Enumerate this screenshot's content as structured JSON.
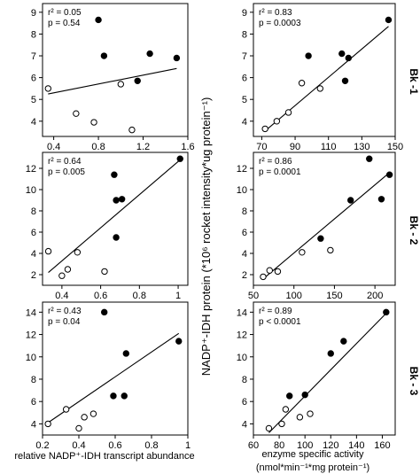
{
  "figure": {
    "y_axis_label": "NADP⁺-IDH protein (*10⁶ rocket intensity*ug protein⁻¹)",
    "x_axis_label_left": "relative NADP⁺-IDH transcript abundance",
    "x_axis_label_right_line1": "enzyme specific activity",
    "x_axis_label_right_line2": "(nmol*min⁻¹*mg protein⁻¹)",
    "row_labels": [
      "Bk -1",
      "Bk - 2",
      "Bk - 3"
    ]
  },
  "chart_data": [
    {
      "type": "scatter",
      "panel": "left-row1",
      "xlim": [
        0.3,
        1.6
      ],
      "ylim": [
        3.3,
        9.4
      ],
      "xticks": [
        0.4,
        0.8,
        1.2,
        1.6
      ],
      "yticks": [
        4,
        5,
        6,
        7,
        8,
        9
      ],
      "annotation": [
        "r² = 0.05",
        "p = 0.54"
      ],
      "series": [
        {
          "marker": "open",
          "points": [
            [
              0.35,
              5.5
            ],
            [
              0.6,
              4.35
            ],
            [
              0.76,
              3.95
            ],
            [
              1.0,
              5.7
            ],
            [
              1.1,
              3.6
            ]
          ]
        },
        {
          "marker": "filled",
          "points": [
            [
              0.8,
              8.65
            ],
            [
              0.85,
              7.0
            ],
            [
              1.15,
              5.85
            ],
            [
              1.26,
              7.1
            ],
            [
              1.5,
              6.9
            ]
          ]
        }
      ],
      "fit": [
        [
          0.35,
          5.25
        ],
        [
          1.5,
          6.42
        ]
      ]
    },
    {
      "type": "scatter",
      "panel": "right-row1",
      "xlim": [
        65,
        150
      ],
      "ylim": [
        3.3,
        9.4
      ],
      "xticks": [
        70,
        90,
        110,
        130,
        150
      ],
      "yticks": [
        4,
        5,
        6,
        7,
        8,
        9
      ],
      "annotation": [
        "r² = 0.83",
        "p = 0.0003"
      ],
      "series": [
        {
          "marker": "open",
          "points": [
            [
              72,
              3.65
            ],
            [
              79,
              4.0
            ],
            [
              86,
              4.4
            ],
            [
              94,
              5.75
            ],
            [
              105,
              5.5
            ]
          ]
        },
        {
          "marker": "filled",
          "points": [
            [
              98,
              7.0
            ],
            [
              118,
              7.1
            ],
            [
              120,
              5.85
            ],
            [
              122,
              6.9
            ],
            [
              146,
              8.65
            ]
          ]
        }
      ],
      "fit": [
        [
          72,
          3.55
        ],
        [
          146,
          8.35
        ]
      ]
    },
    {
      "type": "scatter",
      "panel": "left-row2",
      "xlim": [
        0.3,
        1.05
      ],
      "ylim": [
        1.0,
        13.5
      ],
      "xticks": [
        0.4,
        0.6,
        0.8,
        1.0
      ],
      "yticks": [
        2,
        4,
        6,
        8,
        10,
        12
      ],
      "annotation": [
        "r² = 0.64",
        "p = 0.005"
      ],
      "series": [
        {
          "marker": "open",
          "points": [
            [
              0.33,
              4.2
            ],
            [
              0.4,
              1.9
            ],
            [
              0.43,
              2.5
            ],
            [
              0.48,
              4.1
            ],
            [
              0.62,
              2.3
            ]
          ]
        },
        {
          "marker": "filled",
          "points": [
            [
              0.67,
              11.4
            ],
            [
              0.68,
              9.0
            ],
            [
              0.68,
              5.5
            ],
            [
              0.71,
              9.1
            ],
            [
              1.01,
              12.9
            ]
          ]
        }
      ],
      "fit": [
        [
          0.33,
          2.2
        ],
        [
          1.01,
          12.8
        ]
      ]
    },
    {
      "type": "scatter",
      "panel": "right-row2",
      "xlim": [
        50,
        225
      ],
      "ylim": [
        1.0,
        13.5
      ],
      "xticks": [
        50,
        100,
        150,
        200
      ],
      "yticks": [
        2,
        4,
        6,
        8,
        10,
        12
      ],
      "annotation": [
        "r² = 0.86",
        "p = 0.0001"
      ],
      "series": [
        {
          "marker": "open",
          "points": [
            [
              62,
              1.8
            ],
            [
              70,
              2.4
            ],
            [
              80,
              2.3
            ],
            [
              110,
              4.1
            ],
            [
              145,
              4.3
            ]
          ]
        },
        {
          "marker": "filled",
          "points": [
            [
              133,
              5.4
            ],
            [
              170,
              9.0
            ],
            [
              193,
              12.9
            ],
            [
              208,
              9.1
            ],
            [
              218,
              11.4
            ]
          ]
        }
      ],
      "fit": [
        [
          62,
          1.6
        ],
        [
          218,
          11.6
        ]
      ]
    },
    {
      "type": "scatter",
      "panel": "left-row3",
      "xlim": [
        0.2,
        1.0
      ],
      "ylim": [
        3.0,
        14.9
      ],
      "xticks": [
        0.2,
        0.4,
        0.6,
        0.8,
        1.0
      ],
      "yticks": [
        4,
        6,
        8,
        10,
        12,
        14
      ],
      "annotation": [
        "r² = 0.43",
        "p = 0.04"
      ],
      "series": [
        {
          "marker": "open",
          "points": [
            [
              0.23,
              4.0
            ],
            [
              0.33,
              5.3
            ],
            [
              0.4,
              3.6
            ],
            [
              0.43,
              4.6
            ],
            [
              0.48,
              4.9
            ]
          ]
        },
        {
          "marker": "filled",
          "points": [
            [
              0.54,
              14.0
            ],
            [
              0.59,
              6.5
            ],
            [
              0.65,
              6.5
            ],
            [
              0.66,
              10.3
            ],
            [
              0.95,
              11.4
            ]
          ]
        }
      ],
      "fit": [
        [
          0.23,
          4.1
        ],
        [
          0.95,
          12.1
        ]
      ]
    },
    {
      "type": "scatter",
      "panel": "right-row3",
      "xlim": [
        60,
        170
      ],
      "ylim": [
        3.0,
        14.9
      ],
      "xticks": [
        60,
        80,
        100,
        120,
        140,
        160
      ],
      "yticks": [
        4,
        6,
        8,
        10,
        12,
        14
      ],
      "annotation": [
        "r² = 0.89",
        "p < 0.0001"
      ],
      "series": [
        {
          "marker": "open",
          "points": [
            [
              72,
              3.6
            ],
            [
              82,
              4.0
            ],
            [
              85,
              5.3
            ],
            [
              96,
              4.6
            ],
            [
              104,
              4.9
            ]
          ]
        },
        {
          "marker": "filled",
          "points": [
            [
              88,
              6.5
            ],
            [
              100,
              6.6
            ],
            [
              120,
              10.3
            ],
            [
              130,
              11.4
            ],
            [
              163,
              14.0
            ]
          ]
        }
      ],
      "fit": [
        [
          72,
          3.2
        ],
        [
          163,
          13.9
        ]
      ]
    }
  ]
}
